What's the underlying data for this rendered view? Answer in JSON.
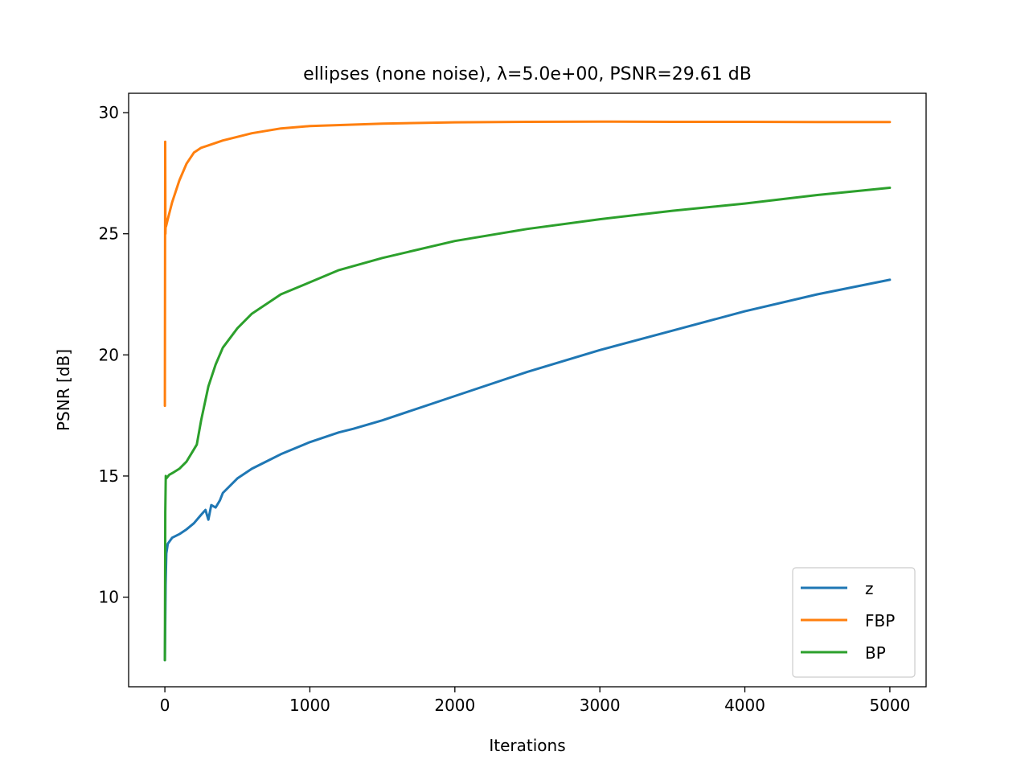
{
  "chart_data": {
    "type": "line",
    "title": "ellipses (none noise), λ=5.0e+00, PSNR=29.61 dB",
    "xlabel": "Iterations",
    "ylabel": "PSNR [dB]",
    "xlim": [
      -250,
      5250
    ],
    "ylim": [
      6.3,
      30.8
    ],
    "xticks": [
      0,
      1000,
      2000,
      3000,
      4000,
      5000
    ],
    "yticks": [
      10,
      15,
      20,
      25,
      30
    ],
    "grid": false,
    "legend_position": "lower-right",
    "series": [
      {
        "name": "z",
        "color": "#1f77b4",
        "x": [
          0,
          5,
          10,
          20,
          50,
          100,
          150,
          200,
          250,
          280,
          300,
          320,
          350,
          380,
          400,
          500,
          600,
          700,
          800,
          1000,
          1200,
          1300,
          1500,
          2000,
          2500,
          3000,
          3500,
          4000,
          4500,
          5000
        ],
        "y": [
          7.4,
          10.5,
          11.8,
          12.2,
          12.45,
          12.6,
          12.8,
          13.05,
          13.4,
          13.6,
          13.2,
          13.8,
          13.7,
          14.0,
          14.3,
          14.9,
          15.3,
          15.6,
          15.9,
          16.4,
          16.8,
          16.95,
          17.3,
          18.3,
          19.3,
          20.2,
          21.0,
          21.8,
          22.5,
          23.1
        ]
      },
      {
        "name": "FBP",
        "color": "#ff7f0e",
        "x": [
          0,
          2,
          4,
          6,
          8,
          20,
          50,
          100,
          150,
          200,
          250,
          300,
          400,
          500,
          600,
          800,
          1000,
          1500,
          2000,
          2500,
          3000,
          3500,
          4000,
          4500,
          5000
        ],
        "y": [
          17.9,
          28.8,
          25.0,
          25.6,
          25.3,
          25.6,
          26.3,
          27.2,
          27.9,
          28.35,
          28.55,
          28.65,
          28.85,
          29.0,
          29.15,
          29.35,
          29.45,
          29.55,
          29.6,
          29.62,
          29.63,
          29.62,
          29.62,
          29.61,
          29.61
        ]
      },
      {
        "name": "BP",
        "color": "#2ca02c",
        "x": [
          0,
          3,
          6,
          10,
          30,
          60,
          100,
          150,
          200,
          220,
          250,
          300,
          350,
          400,
          500,
          600,
          700,
          800,
          1000,
          1200,
          1500,
          2000,
          2500,
          3000,
          3500,
          4000,
          4500,
          5000
        ],
        "y": [
          7.4,
          13.5,
          15.0,
          14.9,
          15.05,
          15.15,
          15.3,
          15.6,
          16.1,
          16.3,
          17.3,
          18.7,
          19.6,
          20.3,
          21.1,
          21.7,
          22.1,
          22.5,
          23.0,
          23.5,
          24.0,
          24.7,
          25.2,
          25.6,
          25.95,
          26.25,
          26.6,
          26.9
        ]
      }
    ]
  }
}
